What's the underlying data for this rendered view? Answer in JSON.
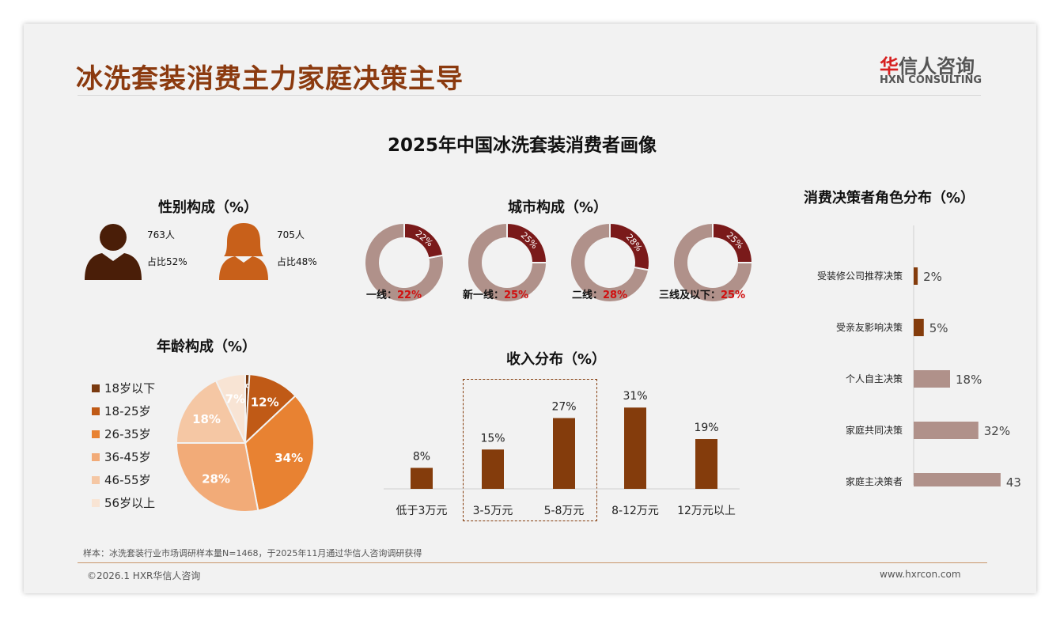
{
  "title": "冰洗套装消费主力家庭决策主导",
  "logo": {
    "cn_red": "华",
    "cn_rest": "信人咨询",
    "en": "HXN CONSULTING"
  },
  "main_title": "2025年中国冰洗套装消费者画像",
  "gender": {
    "title": "性别构成（%）",
    "male_count": "763人",
    "male_share": "占比52%",
    "female_count": "705人",
    "female_share": "占比48%",
    "male_color": "#4a1e08",
    "female_color": "#c8601a"
  },
  "chart_data": [
    {
      "type": "pie",
      "title": "年龄构成（%）",
      "categories": [
        "18岁以下",
        "18-25岁",
        "26-35岁",
        "36-45岁",
        "46-55岁",
        "56岁以上"
      ],
      "values": [
        1,
        12,
        34,
        28,
        18,
        7
      ],
      "labels": [
        "1%",
        "12%",
        "34%",
        "28%",
        "18%",
        "7%"
      ],
      "colors": [
        "#7a3a10",
        "#c05a16",
        "#e88232",
        "#f2ab78",
        "#f5c7a4",
        "#f8e4d4"
      ],
      "legend": "left"
    },
    {
      "type": "pie",
      "title": "城市构成（%）",
      "donuts": [
        {
          "name": "一线：",
          "value": 22,
          "label": "22%"
        },
        {
          "name": "新一线：",
          "value": 25,
          "label": "25%"
        },
        {
          "name": "二线：",
          "value": 28,
          "label": "28%"
        },
        {
          "name": "三线及以下：",
          "value": 25,
          "label": "25%"
        }
      ],
      "colors": [
        "#7a1a1a",
        "#b0918a"
      ]
    },
    {
      "type": "bar",
      "title": "收入分布（%）",
      "categories": [
        "低于3万元",
        "3-5万元",
        "5-8万元",
        "8-12万元",
        "12万元以上"
      ],
      "values": [
        8,
        15,
        27,
        31,
        19
      ],
      "labels": [
        "8%",
        "15%",
        "27%",
        "31%",
        "19%"
      ],
      "highlight": [
        "3-5万元",
        "5-8万元"
      ],
      "color": "#843c0c",
      "ylim": [
        0,
        35
      ]
    },
    {
      "type": "bar",
      "orientation": "horizontal",
      "title": "消费决策者角色分布（%）",
      "categories": [
        "受装修公司推荐决策",
        "受亲友影响决策",
        "个人自主决策",
        "家庭共同决策",
        "家庭主决策者"
      ],
      "values": [
        2,
        5,
        18,
        32,
        43
      ],
      "labels": [
        "2%",
        "5%",
        "18%",
        "32%",
        "43%"
      ],
      "colors": [
        "#843c0c",
        "#843c0c",
        "#b0918a",
        "#b0918a",
        "#b0918a"
      ],
      "xlim": [
        0,
        45
      ]
    }
  ],
  "note": "样本：冰洗套装行业市场调研样本量N=1468，于2025年11月通过华信人咨询调研获得",
  "footer_left": "©2026.1 HXR华信人咨询",
  "footer_right": "www.hxrcon.com"
}
